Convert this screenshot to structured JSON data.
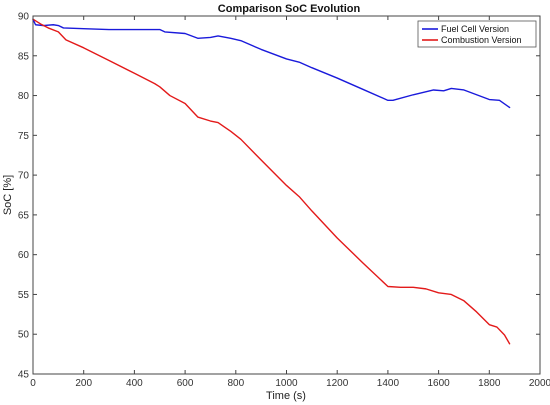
{
  "chart_data": {
    "type": "line",
    "title": "Comparison SoC Evolution",
    "xlabel": "Time (s)",
    "ylabel": "SoC [%]",
    "xlim": [
      0,
      2000
    ],
    "ylim": [
      45,
      90
    ],
    "xticks": [
      0,
      200,
      400,
      600,
      800,
      1000,
      1200,
      1400,
      1600,
      1800,
      2000
    ],
    "yticks": [
      45,
      50,
      55,
      60,
      65,
      70,
      75,
      80,
      85,
      90
    ],
    "grid": false,
    "legend_position": "top-right",
    "series": [
      {
        "name": "Fuel Cell Version",
        "color": "#1a1adb",
        "points": [
          [
            0,
            89.6
          ],
          [
            10,
            88.9
          ],
          [
            40,
            88.8
          ],
          [
            80,
            88.9
          ],
          [
            100,
            88.8
          ],
          [
            120,
            88.5
          ],
          [
            200,
            88.4
          ],
          [
            300,
            88.3
          ],
          [
            400,
            88.3
          ],
          [
            500,
            88.3
          ],
          [
            520,
            88.0
          ],
          [
            600,
            87.8
          ],
          [
            650,
            87.2
          ],
          [
            700,
            87.3
          ],
          [
            730,
            87.5
          ],
          [
            780,
            87.2
          ],
          [
            820,
            86.9
          ],
          [
            900,
            85.8
          ],
          [
            1000,
            84.6
          ],
          [
            1050,
            84.2
          ],
          [
            1100,
            83.5
          ],
          [
            1200,
            82.2
          ],
          [
            1300,
            80.8
          ],
          [
            1400,
            79.4
          ],
          [
            1420,
            79.4
          ],
          [
            1500,
            80.1
          ],
          [
            1580,
            80.7
          ],
          [
            1620,
            80.6
          ],
          [
            1650,
            80.9
          ],
          [
            1700,
            80.7
          ],
          [
            1750,
            80.1
          ],
          [
            1800,
            79.5
          ],
          [
            1840,
            79.4
          ],
          [
            1880,
            78.5
          ]
        ]
      },
      {
        "name": "Combustion Version",
        "color": "#e31a1a",
        "points": [
          [
            0,
            89.6
          ],
          [
            30,
            89.0
          ],
          [
            60,
            88.5
          ],
          [
            100,
            88.0
          ],
          [
            130,
            87.0
          ],
          [
            200,
            86.0
          ],
          [
            300,
            84.4
          ],
          [
            400,
            82.8
          ],
          [
            480,
            81.5
          ],
          [
            500,
            81.1
          ],
          [
            540,
            80.0
          ],
          [
            600,
            79.0
          ],
          [
            650,
            77.3
          ],
          [
            700,
            76.8
          ],
          [
            730,
            76.6
          ],
          [
            780,
            75.5
          ],
          [
            820,
            74.5
          ],
          [
            900,
            71.9
          ],
          [
            1000,
            68.7
          ],
          [
            1050,
            67.3
          ],
          [
            1100,
            65.5
          ],
          [
            1200,
            62.1
          ],
          [
            1300,
            59.0
          ],
          [
            1400,
            56.0
          ],
          [
            1450,
            55.9
          ],
          [
            1500,
            55.9
          ],
          [
            1550,
            55.7
          ],
          [
            1600,
            55.2
          ],
          [
            1650,
            55.0
          ],
          [
            1700,
            54.2
          ],
          [
            1750,
            52.8
          ],
          [
            1800,
            51.2
          ],
          [
            1830,
            50.9
          ],
          [
            1860,
            49.9
          ],
          [
            1880,
            48.8
          ]
        ]
      }
    ]
  }
}
